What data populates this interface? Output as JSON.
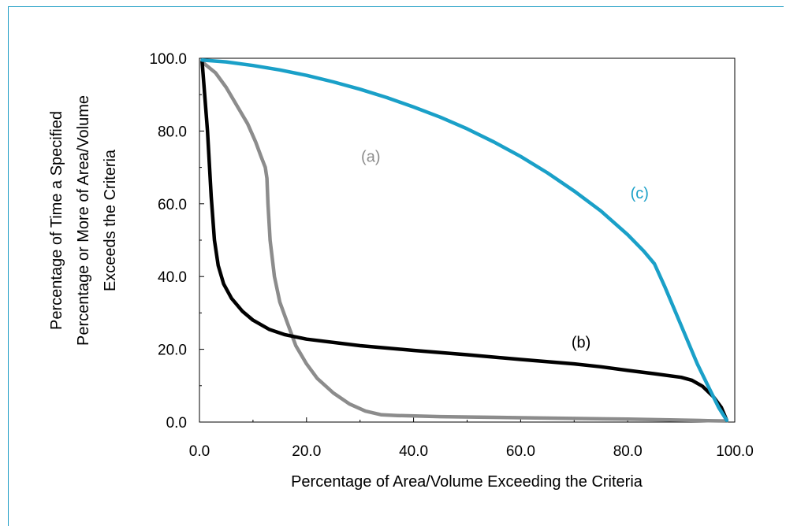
{
  "chart_data": {
    "type": "line",
    "title": "",
    "xlabel": "Percentage of Area/Volume Exceeding the Criteria",
    "ylabel_lines": [
      "Percentage of Time a Specified",
      "Percentage or More of Area/Volume",
      "Exceeds the Criteria"
    ],
    "xlim": [
      0,
      100
    ],
    "ylim": [
      0,
      100
    ],
    "xticks": [
      0,
      20,
      40,
      60,
      80,
      100
    ],
    "yticks": [
      0,
      20,
      40,
      60,
      80,
      100
    ],
    "xtick_labels": [
      "0.0",
      "20.0",
      "40.0",
      "60.0",
      "80.0",
      "100.0"
    ],
    "ytick_labels": [
      "0.0",
      "20.0",
      "40.0",
      "60.0",
      "80.0",
      "100.0"
    ],
    "grid": false,
    "legend": "none",
    "series": [
      {
        "label": "(a)",
        "color": "#8c8c8c",
        "label_at": [
          30.2,
          71.5
        ],
        "x": [
          0.5,
          3,
          5,
          7,
          9,
          10.5,
          11.5,
          12.3,
          12.6,
          12.8,
          13.2,
          14,
          15,
          16.5,
          18,
          20,
          22,
          25,
          28,
          31,
          34,
          37,
          45,
          60,
          80,
          95,
          98.5
        ],
        "y": [
          99,
          96,
          92,
          87,
          82,
          77,
          73,
          70,
          67,
          60,
          50,
          40,
          33,
          27,
          21,
          16,
          12,
          8,
          5,
          3,
          2,
          1.8,
          1.5,
          1.2,
          0.8,
          0.4,
          0.3
        ]
      },
      {
        "label": "(b)",
        "color": "#000000",
        "label_at": [
          69.5,
          20.5
        ],
        "x": [
          0.5,
          1.5,
          2.2,
          2.8,
          3.5,
          4.5,
          6,
          8,
          10,
          13,
          16,
          20,
          30,
          40,
          50,
          60,
          70,
          75,
          80,
          85,
          90,
          92,
          94,
          96,
          97.5,
          98.5
        ],
        "y": [
          99,
          80,
          62,
          50,
          43,
          38,
          34,
          30.5,
          28,
          25.5,
          24,
          22.8,
          21,
          19.7,
          18.5,
          17.2,
          16,
          15.2,
          14.2,
          13.3,
          12.3,
          11.5,
          9.8,
          7,
          4,
          0.5
        ]
      },
      {
        "label": "(c)",
        "color": "#1aa0c8",
        "label_at": [
          80.5,
          61.5
        ],
        "x": [
          0.5,
          5,
          10,
          15,
          20,
          25,
          30,
          35,
          40,
          45,
          50,
          55,
          60,
          65,
          70,
          75,
          80,
          83,
          85,
          87,
          89,
          91,
          93,
          95,
          97,
          98.5
        ],
        "y": [
          99.5,
          99,
          98,
          96.8,
          95.3,
          93.5,
          91.5,
          89.2,
          86.6,
          83.8,
          80.6,
          77,
          73,
          68.5,
          63.5,
          58,
          51.5,
          47,
          43.5,
          37,
          30,
          23,
          16,
          10,
          4,
          0.5
        ]
      }
    ]
  }
}
